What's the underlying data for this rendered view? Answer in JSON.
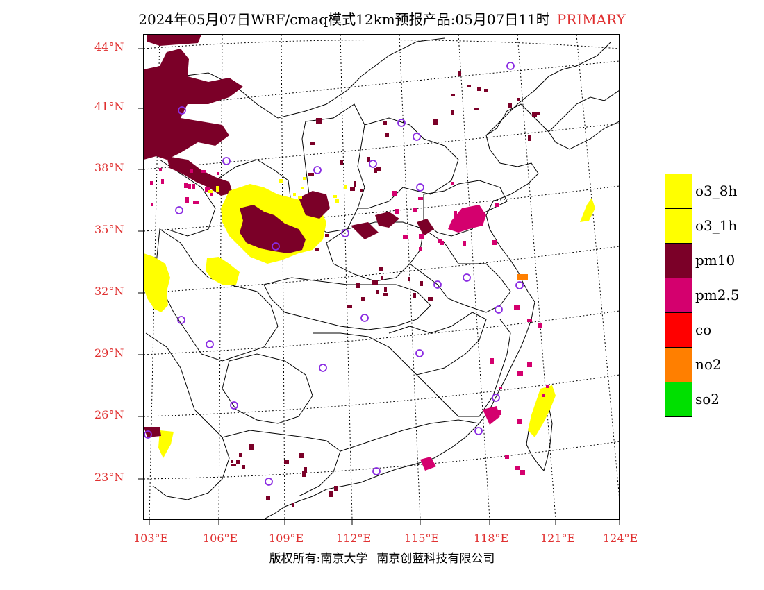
{
  "title": {
    "main": "2024年05月07日WRF/cmaq模式12km预报产品:05月07日11时",
    "tag": "PRIMARY",
    "tag_color": "#e03030"
  },
  "credit": {
    "left": "版权所有:南京大学",
    "right": "南京创蓝科技有限公司"
  },
  "lat_labels": [
    "44°N",
    "41°N",
    "38°N",
    "35°N",
    "32°N",
    "29°N",
    "26°N",
    "23°N"
  ],
  "lon_labels": [
    "103°E",
    "106°E",
    "109°E",
    "112°E",
    "115°E",
    "118°E",
    "121°E",
    "124°E"
  ],
  "legend": [
    {
      "label": "o3_8h",
      "color": "#ffff00"
    },
    {
      "label": "o3_1h",
      "color": "#ffff00"
    },
    {
      "label": "pm10",
      "color": "#7b0028"
    },
    {
      "label": "pm2.5",
      "color": "#d4006e"
    },
    {
      "label": "co",
      "color": "#ff0000"
    },
    {
      "label": "no2",
      "color": "#ff7f00"
    },
    {
      "label": "so2",
      "color": "#00e000"
    }
  ],
  "station_color": "#8a2be2"
}
